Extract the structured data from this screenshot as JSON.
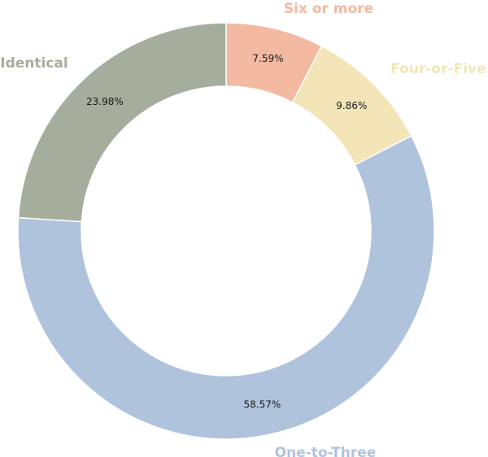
{
  "chart_data": {
    "type": "pie",
    "donut": true,
    "title": "",
    "categories": [
      "Six or more",
      "Four-or-Five",
      "One-to-Three",
      "Identical"
    ],
    "values": [
      7.59,
      9.86,
      58.57,
      23.98
    ],
    "value_labels": [
      "7.59%",
      "9.86%",
      "58.57%",
      "23.98%"
    ],
    "colors": [
      "#f3b9a1",
      "#f3e5b8",
      "#b0c3dd",
      "#a5ae9c"
    ],
    "start": "12 o'clock",
    "direction": "clockwise",
    "legend": "none"
  }
}
